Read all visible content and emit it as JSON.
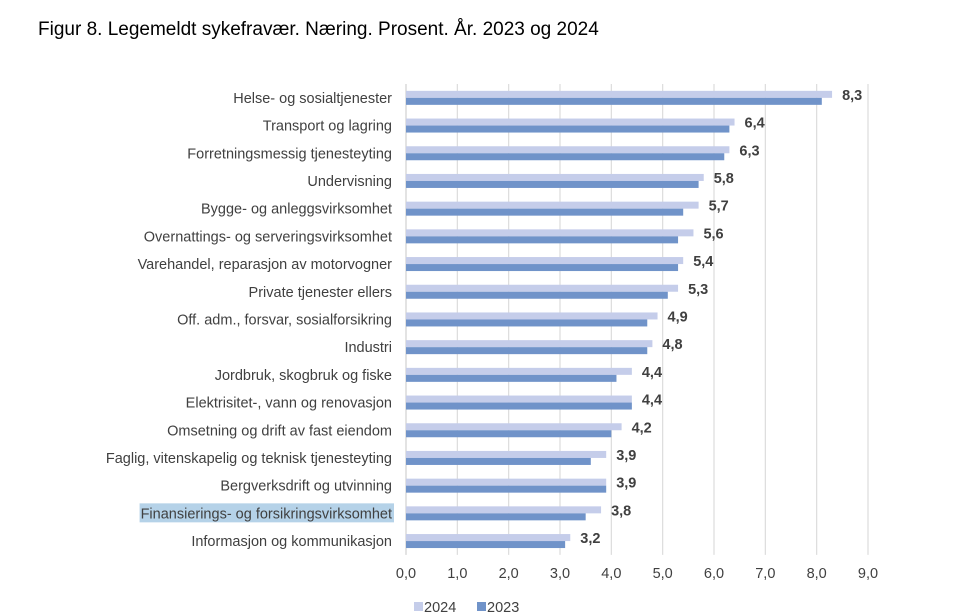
{
  "title": "Figur 8. Legemeldt sykefravær. Næring. Prosent. År. 2023 og 2024",
  "chart_data": {
    "type": "bar",
    "orientation": "horizontal",
    "title": "Figur 8. Legemeldt sykefravær. Næring. Prosent. År. 2023 og 2024",
    "categories": [
      "Helse- og sosialtjenester",
      "Transport og lagring",
      "Forretningsmessig tjenesteyting",
      "Undervisning",
      "Bygge- og anleggsvirksomhet",
      "Overnattings- og serveringsvirksomhet",
      "Varehandel, reparasjon av motorvogner",
      "Private tjenester ellers",
      "Off. adm., forsvar, sosialforsikring",
      "Industri",
      "Jordbruk, skogbruk og fiske",
      "Elektrisitet-, vann og renovasjon",
      "Omsetning og drift av fast eiendom",
      "Faglig, vitenskapelig og teknisk tjenesteyting",
      "Bergverksdrift og utvinning",
      "Finansierings- og forsikringsvirksomhet",
      "Informasjon og kommunikasjon"
    ],
    "series": [
      {
        "name": "2024",
        "color": "#c5cdea",
        "values": [
          8.3,
          6.4,
          6.3,
          5.8,
          5.7,
          5.6,
          5.4,
          5.3,
          4.9,
          4.8,
          4.4,
          4.4,
          4.2,
          3.9,
          3.9,
          3.8,
          3.2
        ]
      },
      {
        "name": "2023",
        "color": "#7093c9",
        "values": [
          8.1,
          6.3,
          6.2,
          5.7,
          5.4,
          5.3,
          5.3,
          5.1,
          4.7,
          4.7,
          4.1,
          4.4,
          4.0,
          3.6,
          3.9,
          3.5,
          3.1
        ]
      }
    ],
    "data_labels": [
      "8,3",
      "6,4",
      "6,3",
      "5,8",
      "5,7",
      "5,6",
      "5,4",
      "5,3",
      "4,9",
      "4,8",
      "4,4",
      "4,4",
      "4,2",
      "3,9",
      "3,9",
      "3,8",
      "3,2"
    ],
    "xlim": [
      0,
      9
    ],
    "x_ticks": [
      "0,0",
      "1,0",
      "2,0",
      "3,0",
      "4,0",
      "5,0",
      "6,0",
      "7,0",
      "8,0",
      "9,0"
    ],
    "grid": "vertical",
    "legend": [
      "2024",
      "2023"
    ],
    "legend_position": "bottom",
    "highlighted_category": "Finansierings- og forsikringsvirksomhet",
    "highlight_color": "#b5d2e8"
  }
}
